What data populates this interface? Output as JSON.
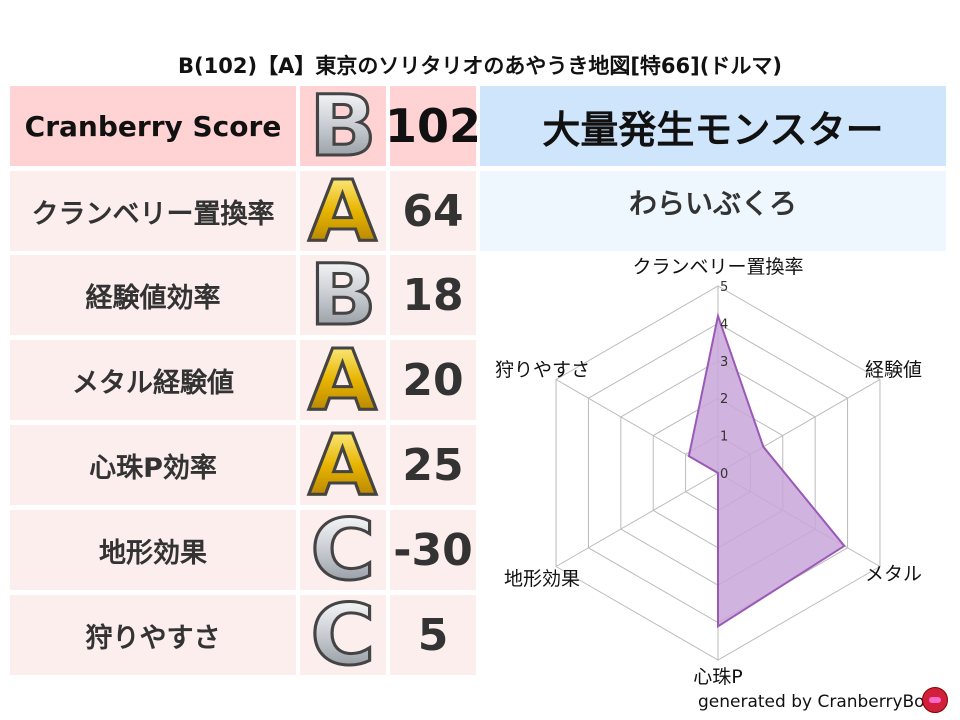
{
  "title": "B(102)【A】東京のソリタリオのあやうき地図[特66](ドルマ)",
  "rows": [
    {
      "label": "Cranberry Score",
      "grade": "B",
      "value": "102"
    },
    {
      "label": "クランベリー置換率",
      "grade": "A",
      "value": "64"
    },
    {
      "label": "経験値効率",
      "grade": "B",
      "value": "18"
    },
    {
      "label": "メタル経験値",
      "grade": "A",
      "value": "20"
    },
    {
      "label": "心珠P効率",
      "grade": "A",
      "value": "25"
    },
    {
      "label": "地形効果",
      "grade": "C",
      "value": "-30"
    },
    {
      "label": "狩りやすさ",
      "grade": "C",
      "value": "5"
    }
  ],
  "monster_header": "大量発生モンスター",
  "monster_name": "わらいぶくろ",
  "footer": "generated by CranberryBot",
  "colors": {
    "fill": "#c9a6d9",
    "stroke": "#9b59b6",
    "header_blue": "#cfe5fb",
    "score_pink": "#ffd3d3"
  },
  "chart_data": {
    "type": "radar",
    "axes": [
      "クランベリー置換率",
      "経験値",
      "メタル",
      "心珠P",
      "地形効果",
      "狩りやすさ"
    ],
    "values": [
      4.2,
      1.4,
      3.9,
      4.1,
      0,
      0.9
    ],
    "range": [
      0,
      5
    ],
    "ticks": [
      "0",
      "1",
      "2",
      "3",
      "4",
      "5"
    ]
  }
}
